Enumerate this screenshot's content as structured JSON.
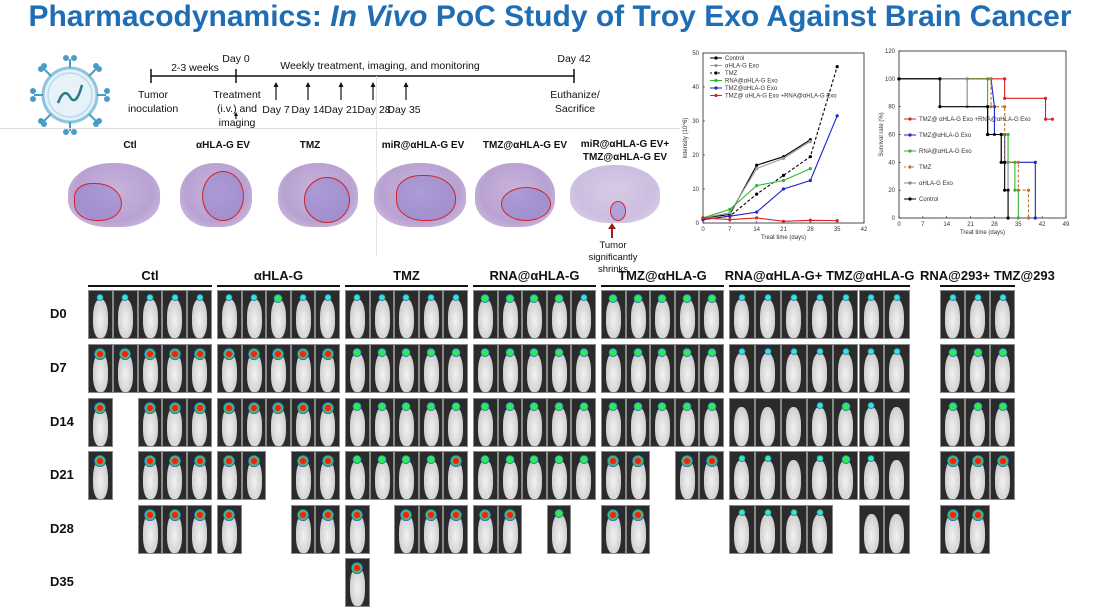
{
  "title": {
    "main": "Pharmacodynamics: ",
    "italic": "In Vivo",
    "rest": " PoC Study of Troy Exo Against Brain Cancer"
  },
  "timeline": {
    "interval": "2-3 weeks",
    "day0": "Day 0",
    "weekly": "Weekly treatment, imaging, and monitoring",
    "day42": "Day 42",
    "tumor_inoculation": "Tumor inoculation",
    "treatment": "Treatment (i.v.) and imaging",
    "days": [
      "Day 7",
      "Day 14",
      "Day 21",
      "Day 28",
      "Day 35"
    ],
    "end": "Euthanize/ Sacrifice"
  },
  "histology": {
    "labels": [
      "Ctl",
      "αHLA-G EV",
      "TMZ",
      "miR@αHLA-G EV",
      "TMZ@αHLA-G EV",
      "miR@αHLA-G EV+ TMZ@αHLA-G EV"
    ],
    "annotation": "Tumor significantly shrinks"
  },
  "imaging": {
    "rows": [
      "D0",
      "D7",
      "D14",
      "D21",
      "D28",
      "D35"
    ],
    "groups": [
      {
        "label": "Ctl",
        "signal": [
          "11111",
          "33333",
          "3.333",
          "3.333",
          "..333",
          "....."
        ]
      },
      {
        "label": "αHLA-G",
        "signal": [
          "11211",
          "33333",
          "33333",
          "33.33",
          "3..33",
          "....."
        ]
      },
      {
        "label": "TMZ",
        "signal": [
          "11111",
          "22222",
          "22222",
          "22223",
          "3.333",
          "3...."
        ]
      },
      {
        "label": "RNA@αHLA-G",
        "signal": [
          "22221",
          "22222",
          "22222",
          "22222",
          "33.2.",
          "....."
        ]
      },
      {
        "label": "TMZ@αHLA-G",
        "signal": [
          "22222",
          "22222",
          "22222",
          "33.33",
          "33...",
          "....."
        ]
      },
      {
        "label": "RNA@αHLA-G+ TMZ@αHLA-G",
        "signal": [
          "1111111",
          "1111111",
          "0001210",
          "1101210",
          "1111.00",
          "......."
        ]
      },
      {
        "label": "RNA@293+ TMZ@293",
        "signal": [
          "111",
          "222",
          "222",
          "333",
          "33.",
          "..."
        ]
      }
    ]
  },
  "chart_data": [
    {
      "type": "line",
      "title": "",
      "xlabel": "Treat time (days)",
      "ylabel": "Intensity (10^6)",
      "xlim": [
        0,
        42
      ],
      "ylim": [
        0,
        50
      ],
      "xticks": [
        0,
        7,
        14,
        21,
        28,
        35,
        42
      ],
      "yticks": [
        0,
        10,
        20,
        30,
        40,
        50
      ],
      "series": [
        {
          "name": "Control",
          "color": "#000000",
          "dash": false,
          "points": [
            [
              0,
              1.5
            ],
            [
              7,
              2.5
            ],
            [
              14,
              17
            ],
            [
              21,
              19.5
            ],
            [
              28,
              24.5
            ]
          ]
        },
        {
          "name": "αHLA-G Exo",
          "color": "#999999",
          "dash": false,
          "points": [
            [
              0,
              1.5
            ],
            [
              7,
              3
            ],
            [
              14,
              16
            ],
            [
              21,
              19
            ],
            [
              28,
              24
            ]
          ]
        },
        {
          "name": "TMZ",
          "color": "#000000",
          "dash": true,
          "points": [
            [
              0,
              1
            ],
            [
              7,
              2
            ],
            [
              14,
              8.5
            ],
            [
              21,
              14
            ],
            [
              28,
              19.5
            ],
            [
              35,
              46
            ]
          ]
        },
        {
          "name": "RNA@αHLA-G Exo",
          "color": "#2db82d",
          "dash": false,
          "points": [
            [
              0,
              1.5
            ],
            [
              7,
              4
            ],
            [
              14,
              11
            ],
            [
              21,
              12.5
            ],
            [
              28,
              16
            ]
          ]
        },
        {
          "name": "TMZ@αHLA-G Exo",
          "color": "#1f24c8",
          "dash": false,
          "points": [
            [
              0,
              1
            ],
            [
              7,
              2
            ],
            [
              14,
              3.2
            ],
            [
              21,
              10
            ],
            [
              28,
              12.5
            ],
            [
              35,
              31.5
            ]
          ]
        },
        {
          "name": "TMZ@ αHLA-G Exo +RNA@αHLA-G Exo",
          "color": "#e02020",
          "dash": false,
          "points": [
            [
              0,
              1.5
            ],
            [
              7,
              1
            ],
            [
              14,
              1.5
            ],
            [
              21,
              0.5
            ],
            [
              28,
              0.8
            ],
            [
              35,
              0.7
            ]
          ]
        }
      ]
    },
    {
      "type": "line",
      "title": "",
      "xlabel": "Treat time (days)",
      "ylabel": "Survival rate (%)",
      "xlim": [
        0,
        49
      ],
      "ylim": [
        0,
        120
      ],
      "xticks": [
        0,
        7,
        14,
        21,
        28,
        35,
        42,
        49
      ],
      "yticks": [
        0,
        20,
        40,
        60,
        80,
        100,
        120
      ],
      "series": [
        {
          "name": "TMZ@ αHLA-G Exo +RNA@αHLA-G Exo",
          "color": "#e02020",
          "dash": false,
          "points": [
            [
              0,
              100
            ],
            [
              31,
              100
            ],
            [
              31,
              86
            ],
            [
              43,
              86
            ],
            [
              43,
              71
            ],
            [
              45,
              71
            ]
          ]
        },
        {
          "name": "TMZ@αHLA-G Exo",
          "color": "#1f24c8",
          "dash": false,
          "points": [
            [
              0,
              100
            ],
            [
              27,
              100
            ],
            [
              28,
              80
            ],
            [
              28,
              60
            ],
            [
              31,
              60
            ],
            [
              31,
              40
            ],
            [
              40,
              40
            ],
            [
              40,
              0
            ]
          ]
        },
        {
          "name": "RNA@αHLA-G Exo",
          "color": "#2db82d",
          "dash": false,
          "points": [
            [
              0,
              100
            ],
            [
              26,
              100
            ],
            [
              26,
              60
            ],
            [
              32,
              60
            ],
            [
              32,
              40
            ],
            [
              34,
              40
            ],
            [
              34,
              20
            ],
            [
              35,
              20
            ],
            [
              35,
              0
            ]
          ]
        },
        {
          "name": "TMZ",
          "color": "#b8732e",
          "dash": true,
          "points": [
            [
              0,
              100
            ],
            [
              27,
              100
            ],
            [
              27,
              80
            ],
            [
              31,
              80
            ],
            [
              31,
              40
            ],
            [
              35,
              40
            ],
            [
              35,
              20
            ],
            [
              38,
              20
            ],
            [
              38,
              0
            ]
          ]
        },
        {
          "name": "αHLA-G Exo",
          "color": "#888888",
          "dash": false,
          "points": [
            [
              0,
              100
            ],
            [
              20,
              100
            ],
            [
              20,
              80
            ],
            [
              26,
              80
            ],
            [
              26,
              60
            ],
            [
              30,
              60
            ],
            [
              30,
              40
            ],
            [
              32,
              40
            ],
            [
              32,
              0
            ]
          ]
        },
        {
          "name": "Control",
          "color": "#000000",
          "dash": false,
          "points": [
            [
              0,
              100
            ],
            [
              12,
              100
            ],
            [
              12,
              80
            ],
            [
              26,
              80
            ],
            [
              26,
              60
            ],
            [
              30,
              60
            ],
            [
              30,
              40
            ],
            [
              31,
              40
            ],
            [
              31,
              20
            ],
            [
              32,
              20
            ],
            [
              32,
              0
            ]
          ]
        }
      ]
    }
  ]
}
